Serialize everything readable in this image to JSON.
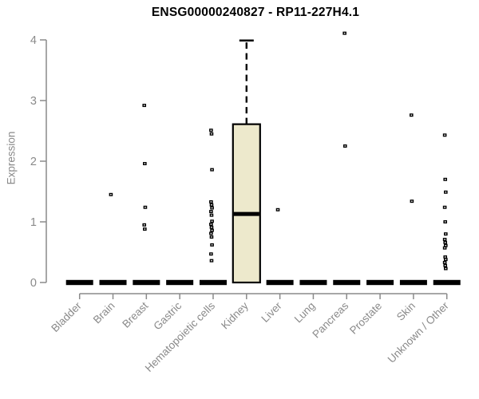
{
  "chart_data": {
    "type": "boxplot",
    "title": "ENSG00000240827 - RP11-227H4.1",
    "ylabel": "Expression",
    "ylim": [
      0,
      4
    ],
    "yticks": [
      "0",
      "1",
      "2",
      "3",
      "4"
    ],
    "grid": false,
    "legend": false,
    "categories": [
      "Bladder",
      "Brain",
      "Breast",
      "Gastric",
      "Hematopoietic cells",
      "Kidney",
      "Liver",
      "Lung",
      "Pancreas",
      "Prostate",
      "Skin",
      "Unknown / Other"
    ],
    "boxes": [
      {
        "category": "Bladder",
        "q1": 0,
        "median": 0,
        "q3": 0,
        "whisker_low": 0,
        "whisker_high": 0,
        "outliers": []
      },
      {
        "category": "Brain",
        "q1": 0,
        "median": 0,
        "q3": 0,
        "whisker_low": 0,
        "whisker_high": 0,
        "outliers": [
          1.45
        ]
      },
      {
        "category": "Breast",
        "q1": 0,
        "median": 0,
        "q3": 0,
        "whisker_low": 0,
        "whisker_high": 0,
        "outliers": [
          2.92,
          1.96,
          1.24,
          0.95,
          0.88
        ]
      },
      {
        "category": "Gastric",
        "q1": 0,
        "median": 0,
        "q3": 0,
        "whisker_low": 0,
        "whisker_high": 0,
        "outliers": []
      },
      {
        "category": "Hematopoietic cells",
        "q1": 0,
        "median": 0,
        "q3": 0,
        "whisker_low": 0,
        "whisker_high": 0,
        "outliers": [
          2.51,
          2.45,
          1.86,
          1.33,
          1.28,
          1.23,
          1.17,
          1.11,
          1.01,
          0.96,
          0.91,
          0.86,
          0.81,
          0.75,
          0.62,
          0.47,
          0.36
        ]
      },
      {
        "category": "Kidney",
        "q1": 0,
        "median": 1.13,
        "q3": 2.61,
        "whisker_low": 0,
        "whisker_high": 3.99,
        "outliers": []
      },
      {
        "category": "Liver",
        "q1": 0,
        "median": 0,
        "q3": 0,
        "whisker_low": 0,
        "whisker_high": 0,
        "outliers": [
          1.2
        ]
      },
      {
        "category": "Lung",
        "q1": 0,
        "median": 0,
        "q3": 0,
        "whisker_low": 0,
        "whisker_high": 0,
        "outliers": []
      },
      {
        "category": "Pancreas",
        "q1": 0,
        "median": 0,
        "q3": 0,
        "whisker_low": 0,
        "whisker_high": 0,
        "outliers": [
          4.11,
          2.25
        ]
      },
      {
        "category": "Prostate",
        "q1": 0,
        "median": 0,
        "q3": 0,
        "whisker_low": 0,
        "whisker_high": 0,
        "outliers": []
      },
      {
        "category": "Skin",
        "q1": 0,
        "median": 0,
        "q3": 0,
        "whisker_low": 0,
        "whisker_high": 0,
        "outliers": [
          2.76,
          1.34
        ]
      },
      {
        "category": "Unknown / Other",
        "q1": 0,
        "median": 0,
        "q3": 0,
        "whisker_low": 0,
        "whisker_high": 0,
        "outliers": [
          2.43,
          1.7,
          1.49,
          1.24,
          1.0,
          0.8,
          0.71,
          0.66,
          0.61,
          0.57,
          0.42,
          0.38,
          0.33,
          0.28,
          0.23
        ]
      }
    ],
    "styles": {
      "box_fill": "#ede9cc",
      "box_border": "#000000",
      "median_color": "#000000",
      "whisker_color": "#000000",
      "outlier_color": "#000000",
      "axis_color": "#8a8a8a",
      "tick_label_color": "#8a8a8a",
      "title_color": "#000000",
      "background": "#ffffff"
    }
  }
}
